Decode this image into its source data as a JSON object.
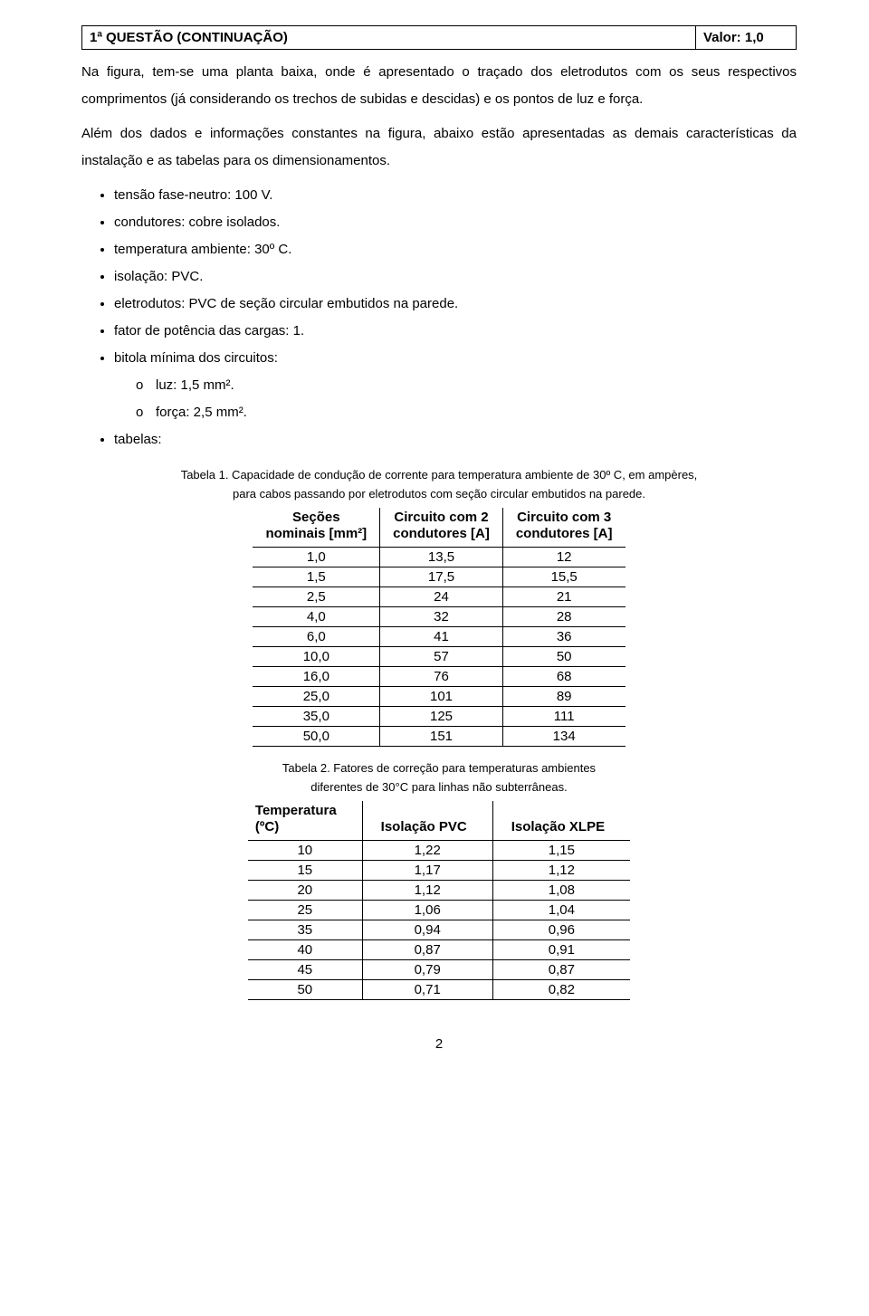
{
  "header": {
    "title": "1ª QUESTÃO (CONTINUAÇÃO)",
    "value_label": "Valor: 1,0"
  },
  "paragraphs": {
    "p1": "Na figura, tem-se uma planta baixa, onde é apresentado o traçado dos eletrodutos com os seus respectivos comprimentos (já considerando os trechos de subidas e descidas) e os pontos de luz e força.",
    "p2": "Além dos dados e informações constantes na figura, abaixo estão apresentadas as demais características da instalação e as tabelas para os dimensionamentos."
  },
  "bullets": [
    "tensão fase-neutro: 100 V.",
    "condutores: cobre isolados.",
    "temperatura ambiente: 30º C.",
    "isolação: PVC.",
    "eletrodutos: PVC de seção circular embutidos na parede.",
    "fator de potência das cargas: 1.",
    "bitola mínima dos circuitos:"
  ],
  "sub_bullets": [
    "luz: 1,5 mm².",
    "força: 2,5 mm²."
  ],
  "bullet_last": "tabelas:",
  "table1": {
    "caption_line1": "Tabela 1. Capacidade de condução de corrente para temperatura ambiente de 30º C, em ampères,",
    "caption_line2": "para cabos passando por eletrodutos com seção circular embutidos na parede.",
    "columns": [
      {
        "l1": "Seções",
        "l2": "nominais [mm²]"
      },
      {
        "l1": "Circuito com 2",
        "l2": "condutores [A]"
      },
      {
        "l1": "Circuito com 3",
        "l2": "condutores [A]"
      }
    ],
    "rows": [
      [
        "1,0",
        "13,5",
        "12"
      ],
      [
        "1,5",
        "17,5",
        "15,5"
      ],
      [
        "2,5",
        "24",
        "21"
      ],
      [
        "4,0",
        "32",
        "28"
      ],
      [
        "6,0",
        "41",
        "36"
      ],
      [
        "10,0",
        "57",
        "50"
      ],
      [
        "16,0",
        "76",
        "68"
      ],
      [
        "25,0",
        "101",
        "89"
      ],
      [
        "35,0",
        "125",
        "111"
      ],
      [
        "50,0",
        "151",
        "134"
      ]
    ]
  },
  "table2": {
    "caption_line1": "Tabela 2. Fatores de correção para temperaturas ambientes",
    "caption_line2": "diferentes de 30°C para linhas não subterrâneas.",
    "columns": [
      "Temperatura\n(ºC)",
      "Isolação PVC",
      "Isolação XLPE"
    ],
    "rows": [
      [
        "10",
        "1,22",
        "1,15"
      ],
      [
        "15",
        "1,17",
        "1,12"
      ],
      [
        "20",
        "1,12",
        "1,08"
      ],
      [
        "25",
        "1,06",
        "1,04"
      ],
      [
        "35",
        "0,94",
        "0,96"
      ],
      [
        "40",
        "0,87",
        "0,91"
      ],
      [
        "45",
        "0,79",
        "0,87"
      ],
      [
        "50",
        "0,71",
        "0,82"
      ]
    ]
  },
  "page_number": "2"
}
